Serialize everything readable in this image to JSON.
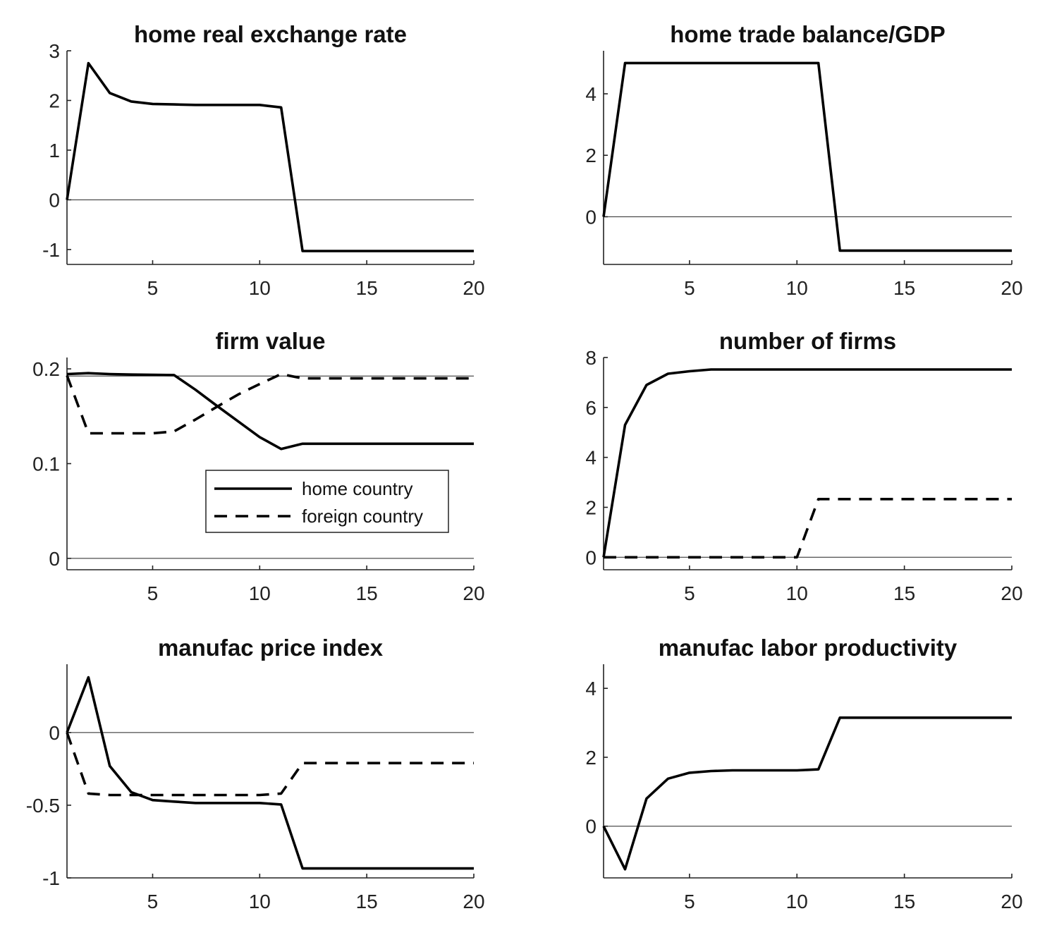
{
  "chart_data": [
    {
      "type": "line",
      "title": "home real exchange rate",
      "xlim": [
        1,
        20
      ],
      "ylim": [
        -1.3,
        3.0
      ],
      "xticks": [
        5,
        10,
        15,
        20
      ],
      "xtick_labels": [
        "5",
        "10",
        "15",
        "20"
      ],
      "yticks": [
        -1,
        0,
        1,
        2,
        3
      ],
      "ytick_labels": [
        "-1",
        "0",
        "1",
        "2",
        "3"
      ],
      "series": [
        {
          "style": "solid",
          "x": [
            1,
            2,
            3,
            4,
            5,
            6,
            7,
            8,
            9,
            10,
            11,
            12,
            13,
            14,
            15,
            16,
            17,
            18,
            19,
            20
          ],
          "values": [
            0,
            2.75,
            2.15,
            1.98,
            1.93,
            1.92,
            1.91,
            1.91,
            1.91,
            1.91,
            1.86,
            -1.03,
            -1.03,
            -1.03,
            -1.03,
            -1.03,
            -1.03,
            -1.03,
            -1.03,
            -1.03
          ]
        }
      ]
    },
    {
      "type": "line",
      "title": "home trade balance/GDP",
      "xlim": [
        1,
        20
      ],
      "ylim": [
        -1.55,
        5.4
      ],
      "xticks": [
        5,
        10,
        15,
        20
      ],
      "xtick_labels": [
        "5",
        "10",
        "15",
        "20"
      ],
      "yticks": [
        0,
        2,
        4
      ],
      "ytick_labels": [
        "0",
        "2",
        "4"
      ],
      "series": [
        {
          "style": "solid",
          "x": [
            1,
            2,
            3,
            4,
            5,
            6,
            7,
            8,
            9,
            10,
            11,
            12,
            13,
            14,
            15,
            16,
            17,
            18,
            19,
            20
          ],
          "values": [
            0,
            5.0,
            5.0,
            5.0,
            5.0,
            5.0,
            5.0,
            5.0,
            5.0,
            5.0,
            5.0,
            -1.1,
            -1.1,
            -1.1,
            -1.1,
            -1.1,
            -1.1,
            -1.1,
            -1.1,
            -1.1
          ]
        }
      ]
    },
    {
      "type": "line",
      "title": "firm value",
      "xlim": [
        1,
        20
      ],
      "ylim": [
        -0.012,
        0.212
      ],
      "xticks": [
        5,
        10,
        15,
        20
      ],
      "xtick_labels": [
        "5",
        "10",
        "15",
        "20"
      ],
      "yticks": [
        0,
        0.1,
        0.2
      ],
      "ytick_labels": [
        "0",
        "0.1",
        "0.2"
      ],
      "reference_lines_y": [
        0,
        0.1925
      ],
      "legend": {
        "position": "inside-lower-right",
        "entries": [
          "home country",
          "foreign country"
        ]
      },
      "series": [
        {
          "name": "home country",
          "style": "solid",
          "x": [
            1,
            2,
            3,
            4,
            5,
            6,
            7,
            8,
            9,
            10,
            11,
            12,
            13,
            14,
            15,
            16,
            17,
            18,
            19,
            20
          ],
          "values": [
            0.1945,
            0.1955,
            0.1945,
            0.194,
            0.1938,
            0.1935,
            0.178,
            0.161,
            0.1445,
            0.128,
            0.1155,
            0.121,
            0.121,
            0.121,
            0.121,
            0.121,
            0.121,
            0.121,
            0.121,
            0.121
          ]
        },
        {
          "name": "foreign country",
          "style": "dashed",
          "x": [
            1,
            2,
            3,
            4,
            5,
            6,
            7,
            8,
            9,
            10,
            11,
            12,
            13,
            14,
            15,
            16,
            17,
            18,
            19,
            20
          ],
          "values": [
            0.193,
            0.132,
            0.132,
            0.132,
            0.132,
            0.134,
            0.1465,
            0.16,
            0.173,
            0.184,
            0.1945,
            0.19,
            0.19,
            0.19,
            0.19,
            0.19,
            0.19,
            0.19,
            0.19,
            0.19
          ]
        }
      ]
    },
    {
      "type": "line",
      "title": "number of firms",
      "xlim": [
        1,
        20
      ],
      "ylim": [
        -0.5,
        8.0
      ],
      "xticks": [
        5,
        10,
        15,
        20
      ],
      "xtick_labels": [
        "5",
        "10",
        "15",
        "20"
      ],
      "yticks": [
        0,
        2,
        4,
        6,
        8
      ],
      "ytick_labels": [
        "0",
        "2",
        "4",
        "6",
        "8"
      ],
      "series": [
        {
          "name": "home country",
          "style": "solid",
          "x": [
            1,
            2,
            3,
            4,
            5,
            6,
            7,
            8,
            9,
            10,
            11,
            12,
            13,
            14,
            15,
            16,
            17,
            18,
            19,
            20
          ],
          "values": [
            0,
            5.3,
            6.9,
            7.35,
            7.45,
            7.52,
            7.52,
            7.52,
            7.52,
            7.52,
            7.52,
            7.52,
            7.52,
            7.52,
            7.52,
            7.52,
            7.52,
            7.52,
            7.52,
            7.52
          ]
        },
        {
          "name": "foreign country",
          "style": "dashed",
          "x": [
            1,
            2,
            3,
            4,
            5,
            6,
            7,
            8,
            9,
            10,
            11,
            12,
            13,
            14,
            15,
            16,
            17,
            18,
            19,
            20
          ],
          "values": [
            0,
            0,
            0,
            0,
            0,
            0,
            0,
            0,
            0,
            0,
            2.33,
            2.33,
            2.33,
            2.33,
            2.33,
            2.33,
            2.33,
            2.33,
            2.33,
            2.33
          ]
        }
      ]
    },
    {
      "type": "line",
      "title": "manufac price index",
      "xlim": [
        1,
        20
      ],
      "ylim": [
        -1.0,
        0.47
      ],
      "xticks": [
        5,
        10,
        15,
        20
      ],
      "xtick_labels": [
        "5",
        "10",
        "15",
        "20"
      ],
      "yticks": [
        -1,
        -0.5,
        0
      ],
      "ytick_labels": [
        "-1",
        "-0.5",
        "0"
      ],
      "series": [
        {
          "name": "home country",
          "style": "solid",
          "x": [
            1,
            2,
            3,
            4,
            5,
            6,
            7,
            8,
            9,
            10,
            11,
            12,
            13,
            14,
            15,
            16,
            17,
            18,
            19,
            20
          ],
          "values": [
            0,
            0.38,
            -0.23,
            -0.41,
            -0.465,
            -0.475,
            -0.485,
            -0.485,
            -0.485,
            -0.485,
            -0.495,
            -0.935,
            -0.935,
            -0.935,
            -0.935,
            -0.935,
            -0.935,
            -0.935,
            -0.935,
            -0.935
          ]
        },
        {
          "name": "foreign country",
          "style": "dashed",
          "x": [
            1,
            2,
            3,
            4,
            5,
            6,
            7,
            8,
            9,
            10,
            11,
            12,
            13,
            14,
            15,
            16,
            17,
            18,
            19,
            20
          ],
          "values": [
            0,
            -0.42,
            -0.43,
            -0.43,
            -0.43,
            -0.43,
            -0.43,
            -0.43,
            -0.43,
            -0.43,
            -0.42,
            -0.21,
            -0.21,
            -0.21,
            -0.21,
            -0.21,
            -0.21,
            -0.21,
            -0.21,
            -0.21
          ]
        }
      ]
    },
    {
      "type": "line",
      "title": "manufac labor productivity",
      "xlim": [
        1,
        20
      ],
      "ylim": [
        -1.5,
        4.7
      ],
      "xticks": [
        5,
        10,
        15,
        20
      ],
      "xtick_labels": [
        "5",
        "10",
        "15",
        "20"
      ],
      "yticks": [
        0,
        2,
        4
      ],
      "ytick_labels": [
        "0",
        "2",
        "4"
      ],
      "series": [
        {
          "style": "solid",
          "x": [
            1,
            2,
            3,
            4,
            5,
            6,
            7,
            8,
            9,
            10,
            11,
            12,
            13,
            14,
            15,
            16,
            17,
            18,
            19,
            20
          ],
          "values": [
            0,
            -1.25,
            0.8,
            1.38,
            1.55,
            1.6,
            1.62,
            1.62,
            1.62,
            1.62,
            1.65,
            3.15,
            3.15,
            3.15,
            3.15,
            3.15,
            3.15,
            3.15,
            3.15,
            3.15
          ]
        }
      ]
    }
  ]
}
